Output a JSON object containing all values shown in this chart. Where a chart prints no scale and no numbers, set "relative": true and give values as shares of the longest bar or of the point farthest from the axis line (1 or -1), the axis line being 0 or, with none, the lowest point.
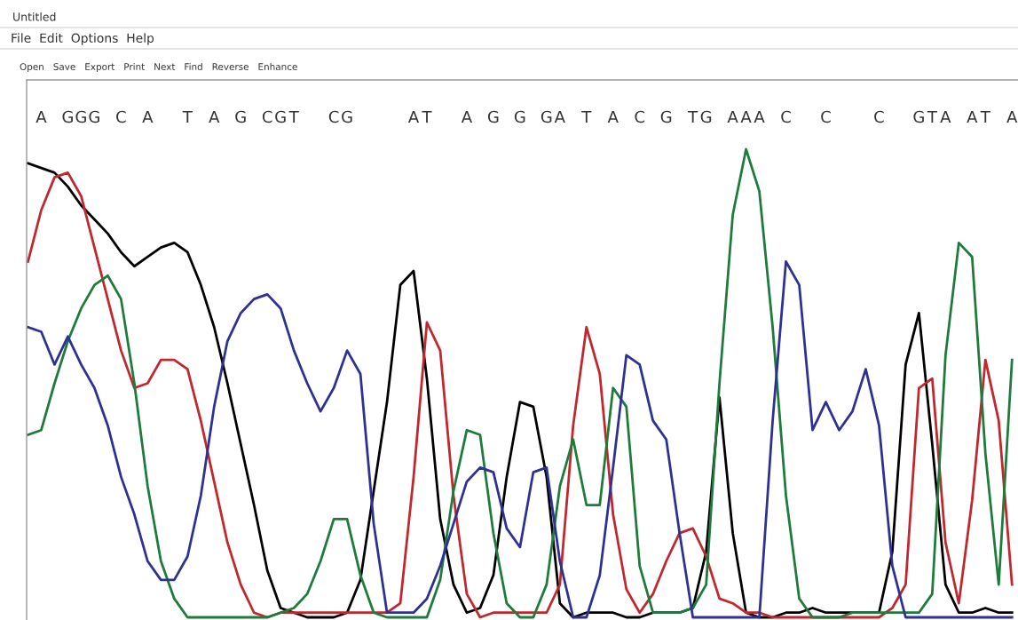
{
  "chart_data": {
    "type": "line",
    "relative": true,
    "tick_labels": "x",
    "marker": "none",
    "line_style": "solid",
    "categories": [
      null,
      "A",
      null,
      "G",
      "G",
      "G",
      null,
      "C",
      null,
      "A",
      null,
      null,
      "T",
      null,
      "A",
      null,
      "G",
      null,
      "C",
      "G",
      "T",
      null,
      null,
      "C",
      "G",
      null,
      null,
      null,
      null,
      "A",
      "T",
      null,
      null,
      "A",
      null,
      "G",
      null,
      "G",
      null,
      "G",
      "A",
      null,
      "T",
      null,
      "A",
      null,
      "C",
      null,
      "G",
      null,
      "T",
      "G",
      null,
      "A",
      "A",
      "A",
      null,
      "C",
      null,
      null,
      "C",
      null,
      null,
      null,
      "C",
      null,
      null,
      "G",
      "T",
      "A",
      null,
      "A",
      "T",
      null,
      "A"
    ],
    "series": [
      {
        "color": "#000000",
        "values": [
          0.97,
          0.96,
          0.95,
          0.92,
          0.88,
          0.85,
          0.82,
          0.78,
          0.75,
          0.77,
          0.79,
          0.8,
          0.78,
          0.71,
          0.62,
          0.5,
          0.37,
          0.24,
          0.1,
          0.02,
          0.01,
          0.0,
          0.0,
          0.0,
          0.01,
          0.08,
          0.27,
          0.46,
          0.71,
          0.74,
          0.51,
          0.21,
          0.07,
          0.01,
          0.02,
          0.09,
          0.3,
          0.46,
          0.45,
          0.3,
          0.03,
          0.0,
          0.01,
          0.01,
          0.01,
          0.0,
          0.0,
          0.01,
          0.01,
          0.01,
          0.02,
          0.14,
          0.47,
          0.18,
          0.01,
          0.0,
          0.0,
          0.01,
          0.01,
          0.02,
          0.01,
          0.01,
          0.01,
          0.01,
          0.01,
          0.14,
          0.54,
          0.65,
          0.37,
          0.07,
          0.01,
          0.01,
          0.02,
          0.01,
          0.01
        ]
      },
      {
        "color": "#c0282d",
        "values": [
          0.76,
          0.87,
          0.94,
          0.95,
          0.9,
          0.79,
          0.68,
          0.57,
          0.49,
          0.5,
          0.55,
          0.55,
          0.53,
          0.42,
          0.29,
          0.16,
          0.07,
          0.01,
          0.0,
          0.01,
          0.01,
          0.01,
          0.01,
          0.01,
          0.01,
          0.01,
          0.01,
          0.01,
          0.03,
          0.3,
          0.63,
          0.57,
          0.26,
          0.05,
          0.0,
          0.01,
          0.01,
          0.01,
          0.01,
          0.01,
          0.07,
          0.41,
          0.62,
          0.52,
          0.22,
          0.06,
          0.01,
          0.05,
          0.12,
          0.18,
          0.19,
          0.13,
          0.04,
          0.03,
          0.01,
          0.01,
          0.0,
          0.0,
          0.0,
          0.0,
          0.0,
          0.0,
          0.0,
          0.0,
          0.0,
          0.02,
          0.07,
          0.49,
          0.51,
          0.16,
          0.03,
          0.25,
          0.55,
          0.42,
          0.07
        ]
      },
      {
        "color": "#1e7b3c",
        "values": [
          0.39,
          0.4,
          0.5,
          0.59,
          0.66,
          0.71,
          0.73,
          0.68,
          0.5,
          0.28,
          0.12,
          0.04,
          0.0,
          0.0,
          0.0,
          0.0,
          0.0,
          0.0,
          0.0,
          0.01,
          0.02,
          0.05,
          0.12,
          0.21,
          0.21,
          0.09,
          0.01,
          0.0,
          0.0,
          0.0,
          0.0,
          0.08,
          0.27,
          0.4,
          0.39,
          0.18,
          0.03,
          0.0,
          0.0,
          0.07,
          0.28,
          0.38,
          0.24,
          0.24,
          0.49,
          0.45,
          0.11,
          0.01,
          0.01,
          0.01,
          0.02,
          0.07,
          0.5,
          0.86,
          1.0,
          0.91,
          0.62,
          0.26,
          0.04,
          0.0,
          0.0,
          0.0,
          0.01,
          0.01,
          0.01,
          0.01,
          0.01,
          0.01,
          0.05,
          0.56,
          0.8,
          0.77,
          0.35,
          0.07,
          0.55
        ]
      },
      {
        "color": "#2e3192",
        "values": [
          0.62,
          0.61,
          0.54,
          0.6,
          0.54,
          0.49,
          0.41,
          0.3,
          0.22,
          0.12,
          0.08,
          0.08,
          0.13,
          0.26,
          0.45,
          0.59,
          0.65,
          0.68,
          0.69,
          0.66,
          0.57,
          0.5,
          0.44,
          0.49,
          0.57,
          0.52,
          0.2,
          0.01,
          0.01,
          0.01,
          0.04,
          0.11,
          0.2,
          0.29,
          0.32,
          0.31,
          0.19,
          0.15,
          0.31,
          0.32,
          0.12,
          0.0,
          0.0,
          0.09,
          0.32,
          0.56,
          0.54,
          0.42,
          0.38,
          0.18,
          0.0,
          0.0,
          0.0,
          0.0,
          0.0,
          0.0,
          0.42,
          0.76,
          0.71,
          0.4,
          0.46,
          0.4,
          0.44,
          0.53,
          0.41,
          0.11,
          0.0,
          0.0,
          0.0,
          0.0,
          0.0,
          0.0,
          0.0,
          0.0,
          0.0
        ]
      }
    ],
    "annotations": [
      "Untitled",
      "File  Edit  Options  Help",
      "Open   Save   Export   Print   Next   Find   Reverse   Enhance"
    ]
  }
}
